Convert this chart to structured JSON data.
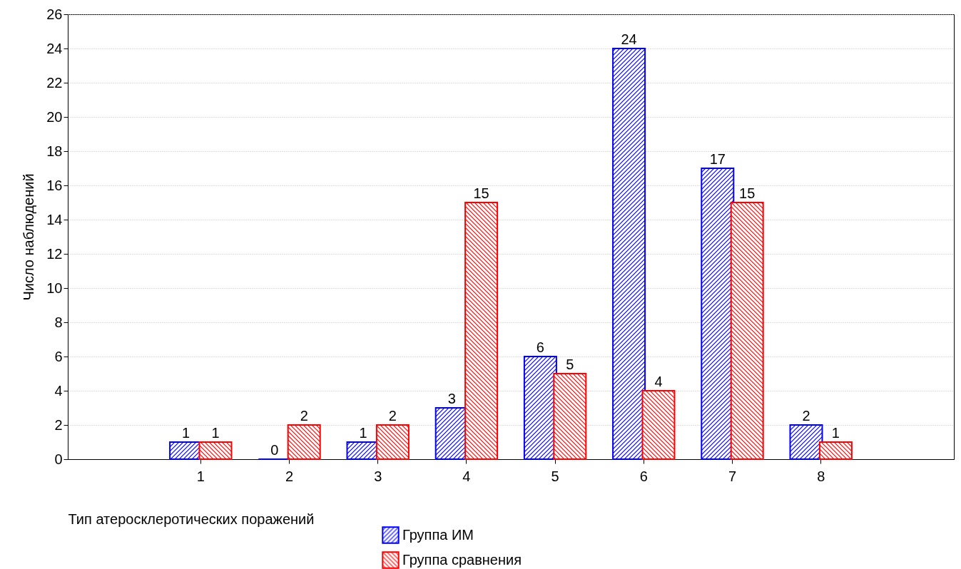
{
  "chart_data": {
    "type": "bar",
    "xlabel": "Тип атеросклеротических поражений",
    "ylabel": "Число наблюдений",
    "categories": [
      "1",
      "2",
      "3",
      "4",
      "5",
      "6",
      "7",
      "8"
    ],
    "series": [
      {
        "name": "Группа ИМ",
        "color": "#0000ff",
        "values": [
          1,
          0,
          1,
          3,
          6,
          24,
          17,
          2
        ]
      },
      {
        "name": "Группа сравнения",
        "color": "#ff0000",
        "values": [
          1,
          2,
          2,
          15,
          5,
          4,
          15,
          1
        ]
      }
    ],
    "ylim": [
      0,
      26
    ],
    "yticks": [
      0,
      2,
      4,
      6,
      8,
      10,
      12,
      14,
      16,
      18,
      20,
      22,
      24,
      26
    ],
    "grid": "y",
    "legend": "bottom",
    "data_labels": true
  }
}
